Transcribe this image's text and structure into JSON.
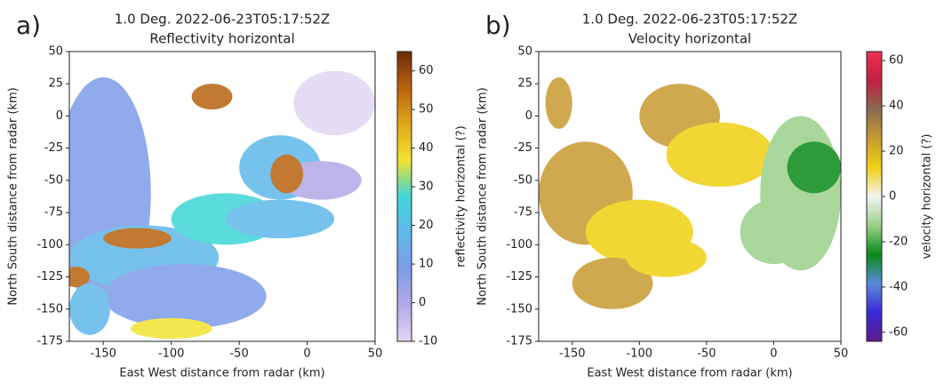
{
  "chart_data": [
    {
      "type": "image",
      "panel_label": "a)",
      "title": "1.0 Deg. 2022-06-23T05:17:52Z",
      "subtitle": "Reflectivity horizontal",
      "xlabel": "East West distance from radar (km)",
      "ylabel": "North South distance from radar (km)",
      "xlim": [
        -175,
        50
      ],
      "ylim": [
        -175,
        50
      ],
      "xticks": [
        -150,
        -100,
        -50,
        0,
        50
      ],
      "yticks": [
        -175,
        -150,
        -125,
        -100,
        -75,
        -50,
        -25,
        0,
        25,
        50
      ],
      "colorbar_label": "reflectivity horizontal (?)",
      "clim": [
        -10,
        65
      ],
      "cticks": [
        -10,
        0,
        10,
        20,
        30,
        40,
        50,
        60
      ],
      "colormap": [
        "#e2d6f2",
        "#b3a8e6",
        "#7d9ce8",
        "#5fb8ea",
        "#3fd6d6",
        "#f2e230",
        "#e0a618",
        "#b8620e",
        "#6e2a08"
      ]
    },
    {
      "type": "image",
      "panel_label": "b)",
      "title": "1.0 Deg. 2022-06-23T05:17:52Z",
      "subtitle": "Velocity horizontal",
      "xlabel": "East West distance from radar (km)",
      "ylabel": "North South distance from radar (km)",
      "xlim": [
        -175,
        50
      ],
      "ylim": [
        -175,
        50
      ],
      "xticks": [
        -150,
        -100,
        -50,
        0,
        50
      ],
      "yticks": [
        -175,
        -150,
        -125,
        -100,
        -75,
        -50,
        -25,
        0,
        25,
        50
      ],
      "colorbar_label": "velocity horizontal (?)",
      "clim": [
        -64,
        64
      ],
      "cticks": [
        -60,
        -40,
        -20,
        0,
        20,
        40,
        60
      ],
      "colormap": [
        "#5a1a8a",
        "#3a2ad8",
        "#5a8ad8",
        "#0a8a1a",
        "#9ad08a",
        "#f4f4f0",
        "#f0d010",
        "#c89a30",
        "#8a6a50",
        "#c02040",
        "#f03050"
      ]
    }
  ]
}
